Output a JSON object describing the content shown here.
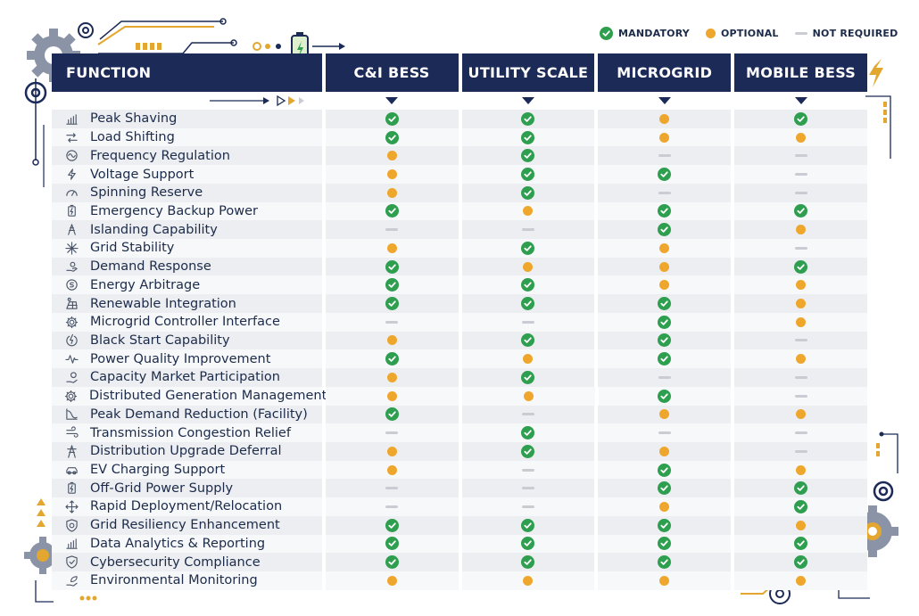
{
  "legend": [
    {
      "status": "m",
      "label": "MANDATORY"
    },
    {
      "status": "o",
      "label": "OPTIONAL"
    },
    {
      "status": "n",
      "label": "NOT REQUIRED"
    }
  ],
  "header": {
    "function_label": "FUNCTION",
    "columns": [
      "C&I BESS",
      "UTILITY SCALE",
      "MICROGRID",
      "MOBILE BESS"
    ]
  },
  "colors": {
    "header_bg": "#1b2a57",
    "mandatory": "#2e9e4f",
    "optional": "#efa62c",
    "not_required": "#c9ccd2",
    "accent_gold": "#e3a72f"
  },
  "rows": [
    {
      "label": "Peak Shaving",
      "icon": "chart-bar-icon",
      "values": [
        "m",
        "m",
        "o",
        "m"
      ]
    },
    {
      "label": "Load Shifting",
      "icon": "shift-arrows-icon",
      "values": [
        "m",
        "m",
        "o",
        "o"
      ]
    },
    {
      "label": "Frequency Regulation",
      "icon": "wave-icon",
      "values": [
        "o",
        "m",
        "n",
        "n"
      ]
    },
    {
      "label": "Voltage Support",
      "icon": "bolt-icon",
      "values": [
        "o",
        "m",
        "m",
        "n"
      ]
    },
    {
      "label": "Spinning Reserve",
      "icon": "gauge-icon",
      "values": [
        "o",
        "m",
        "n",
        "n"
      ]
    },
    {
      "label": "Emergency Backup Power",
      "icon": "battery-icon",
      "values": [
        "m",
        "o",
        "m",
        "m"
      ]
    },
    {
      "label": "Islanding Capability",
      "icon": "tower-icon",
      "values": [
        "n",
        "n",
        "m",
        "o"
      ]
    },
    {
      "label": "Grid Stability",
      "icon": "star-burst-icon",
      "values": [
        "o",
        "m",
        "o",
        "n"
      ]
    },
    {
      "label": "Demand Response",
      "icon": "hand-icon",
      "values": [
        "m",
        "o",
        "o",
        "m"
      ]
    },
    {
      "label": "Energy Arbitrage",
      "icon": "coin-icon",
      "values": [
        "m",
        "m",
        "o",
        "o"
      ]
    },
    {
      "label": "Renewable Integration",
      "icon": "solar-icon",
      "values": [
        "m",
        "m",
        "m",
        "o"
      ]
    },
    {
      "label": "Microgrid Controller Interface",
      "icon": "gear-icon",
      "values": [
        "n",
        "n",
        "m",
        "o"
      ]
    },
    {
      "label": "Black Start Capability",
      "icon": "power-icon",
      "values": [
        "o",
        "m",
        "m",
        "n"
      ]
    },
    {
      "label": "Power Quality Improvement",
      "icon": "pulse-icon",
      "values": [
        "m",
        "o",
        "m",
        "o"
      ]
    },
    {
      "label": "Capacity Market Participation",
      "icon": "hand-coin-icon",
      "values": [
        "o",
        "m",
        "n",
        "n"
      ]
    },
    {
      "label": "Distributed Generation Management",
      "icon": "gear-icon",
      "values": [
        "o",
        "o",
        "m",
        "n"
      ]
    },
    {
      "label": "Peak Demand Reduction (Facility)",
      "icon": "curve-icon",
      "values": [
        "m",
        "n",
        "o",
        "o"
      ]
    },
    {
      "label": "Transmission Congestion Relief",
      "icon": "wind-icon",
      "values": [
        "n",
        "m",
        "n",
        "n"
      ]
    },
    {
      "label": "Distribution Upgrade Deferral",
      "icon": "pylon-icon",
      "values": [
        "o",
        "m",
        "o",
        "n"
      ]
    },
    {
      "label": "EV Charging Support",
      "icon": "car-icon",
      "values": [
        "o",
        "n",
        "m",
        "o"
      ]
    },
    {
      "label": "Off-Grid Power Supply",
      "icon": "battery-icon",
      "values": [
        "n",
        "n",
        "m",
        "m"
      ]
    },
    {
      "label": "Rapid Deployment/Relocation",
      "icon": "move-icon",
      "values": [
        "n",
        "n",
        "o",
        "m"
      ]
    },
    {
      "label": "Grid Resiliency Enhancement",
      "icon": "shield-gear-icon",
      "values": [
        "m",
        "m",
        "m",
        "o"
      ]
    },
    {
      "label": "Data Analytics & Reporting",
      "icon": "chart-bar-icon",
      "values": [
        "m",
        "m",
        "m",
        "m"
      ]
    },
    {
      "label": "Cybersecurity Compliance",
      "icon": "shield-icon",
      "values": [
        "m",
        "m",
        "m",
        "m"
      ]
    },
    {
      "label": "Environmental Monitoring",
      "icon": "leaf-hand-icon",
      "values": [
        "o",
        "o",
        "o",
        "o"
      ]
    }
  ]
}
